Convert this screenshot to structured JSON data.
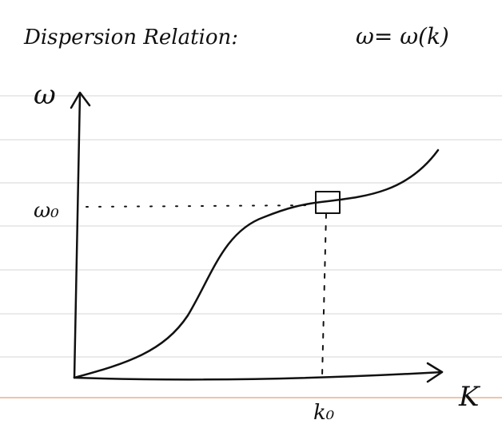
{
  "title": "Dispersion Relation:",
  "equation": "ω= ω(k)",
  "axes": {
    "y_label": "ω",
    "x_label": "K"
  },
  "markers": {
    "omega_0": "ω₀",
    "k_0": "k₀"
  }
}
